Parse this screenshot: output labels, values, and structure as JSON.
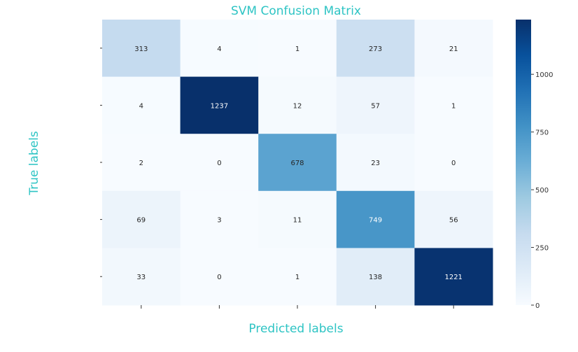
{
  "chart_data": {
    "type": "heatmap",
    "title": "SVM Confusion Matrix",
    "xlabel": "Predicted labels",
    "ylabel": "True labels",
    "rows": 5,
    "cols": 5,
    "values": [
      [
        313,
        4,
        1,
        273,
        21
      ],
      [
        4,
        1237,
        12,
        57,
        1
      ],
      [
        2,
        0,
        678,
        23,
        0
      ],
      [
        69,
        3,
        11,
        749,
        56
      ],
      [
        33,
        0,
        1,
        138,
        1221
      ]
    ],
    "colormap": "Blues",
    "vmin": 0,
    "vmax": 1237,
    "colorbar": {
      "ticks": [
        0,
        250,
        500,
        750,
        1000
      ],
      "labels": [
        "0",
        "250",
        "500",
        "750",
        "1000"
      ]
    },
    "x_tick_labels": [
      "",
      "",
      "",
      "",
      ""
    ],
    "y_tick_labels": [
      "",
      "",
      "",
      "",
      ""
    ]
  },
  "colors": {
    "label_color": "#2ec4c4",
    "text_dark": "#262626",
    "text_light": "#ffffff",
    "blues": [
      "#f7fbff",
      "#deebf7",
      "#c6dbef",
      "#9ecae1",
      "#6baed6",
      "#4292c6",
      "#2171b5",
      "#08519c",
      "#08306b"
    ]
  }
}
